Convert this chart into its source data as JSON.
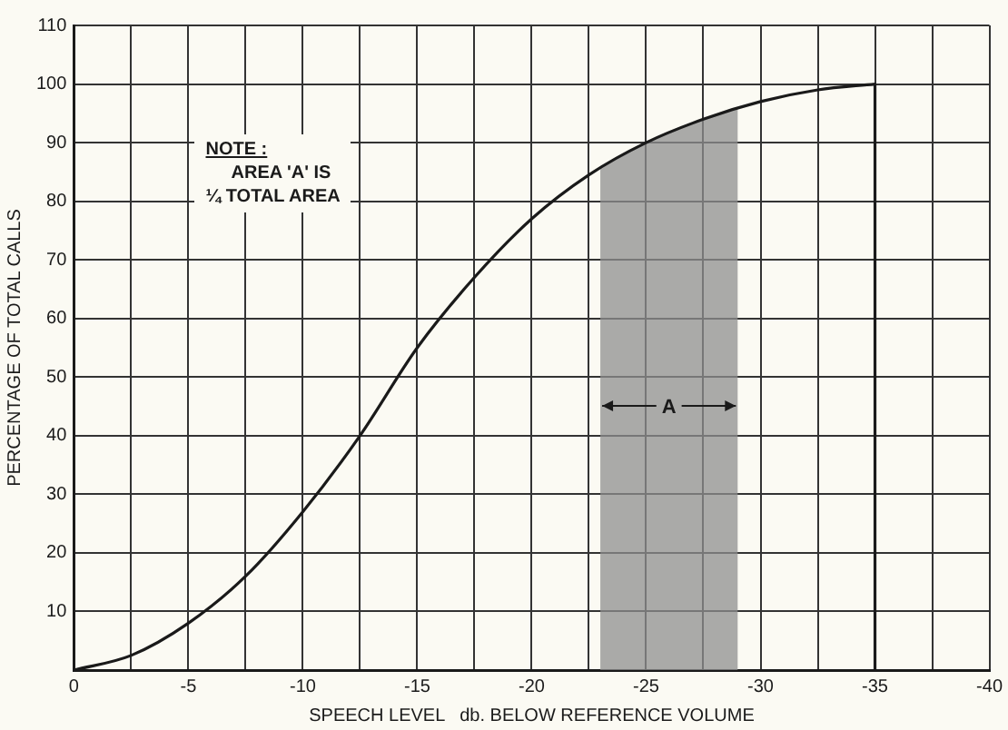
{
  "chart_data": {
    "type": "line",
    "xlabel": "SPEECH LEVEL   db. BELOW REFERENCE VOLUME",
    "ylabel": "PERCENTAGE OF TOTAL CALLS",
    "x": [
      0,
      -2.5,
      -5,
      -7.5,
      -10,
      -12.5,
      -15,
      -17.5,
      -20,
      -22.5,
      -25,
      -27.5,
      -30,
      -32.5,
      -35
    ],
    "series": [
      {
        "color": "#1a1a1a",
        "values": [
          0,
          2.5,
          8,
          16,
          27,
          40,
          55,
          67,
          77,
          84.5,
          90,
          94,
          97,
          99,
          100
        ]
      }
    ],
    "xlim": [
      0,
      -40
    ],
    "xticks": [
      0,
      {
        "value": -2.5,
        "label": null
      },
      -5,
      {
        "value": -7.5,
        "label": null
      },
      -10,
      {
        "value": -12.5,
        "label": null
      },
      -15,
      {
        "value": -17.5,
        "label": null
      },
      -20,
      {
        "value": -22.5,
        "label": null
      },
      -25,
      {
        "value": -27.5,
        "label": null
      },
      -30,
      {
        "value": -32.5,
        "label": null
      },
      -35,
      {
        "value": -37.5,
        "label": null
      },
      -40
    ],
    "ylim": [
      0,
      110
    ],
    "yticks": [
      {
        "value": 0,
        "label": null
      },
      10,
      20,
      30,
      40,
      50,
      60,
      70,
      80,
      90,
      100,
      110
    ],
    "bands": [
      {
        "axis": "x",
        "from": -23,
        "to": -29,
        "label": "A",
        "color": "#8f8f8f"
      }
    ],
    "ref_lines": [
      {
        "axis": "x",
        "value": -35
      }
    ],
    "annotations": [
      "NOTE :\nAREA 'A' IS\n¼ TOTAL AREA"
    ],
    "grid": true,
    "legend": false,
    "marker": "none",
    "line_style": "solid"
  }
}
